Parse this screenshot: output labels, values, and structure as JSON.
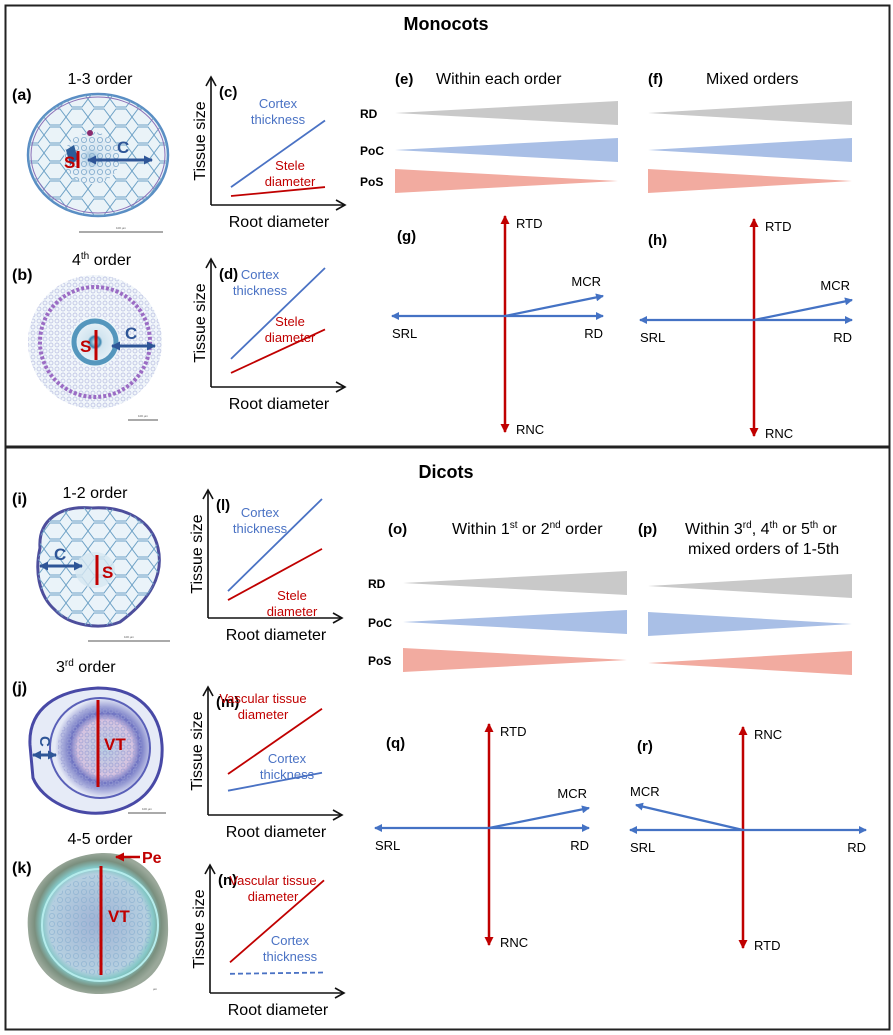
{
  "sections": [
    {
      "title": "Monocots",
      "micrographs": [
        {
          "panel": "(a)",
          "order_label": "1-3 order",
          "order_sup": "",
          "markers": [
            "S",
            "C"
          ],
          "scale_bar": "100 µm"
        },
        {
          "panel": "(b)",
          "order_label": "4",
          "order_sup": "th",
          "order_suffix": " order",
          "markers": [
            "S",
            "C"
          ],
          "scale_bar": "100 µm"
        }
      ],
      "plots": [
        {
          "panel": "(c)",
          "ylabel": "Tissue size",
          "xlabel": "Root diameter",
          "lines": [
            {
              "name": "Cortex thickness",
              "line1": "Cortex",
              "line2": "thickness",
              "color": "#4a72c4",
              "style": "solid",
              "y_start": 0.14,
              "y_end": 0.66
            },
            {
              "name": "Stele diameter",
              "line1": "Stele",
              "line2": "diameter",
              "color": "#c00000",
              "style": "solid",
              "y_start": 0.07,
              "y_end": 0.14
            }
          ]
        },
        {
          "panel": "(d)",
          "ylabel": "Tissue size",
          "xlabel": "Root diameter",
          "lines": [
            {
              "name": "Cortex thickness",
              "line1": "Cortex",
              "line2": "thickness",
              "color": "#4a72c4",
              "style": "solid",
              "y_start": 0.22,
              "y_end": 0.93
            },
            {
              "name": "Stele diameter",
              "line1": "Stele",
              "line2": "diameter",
              "color": "#c00000",
              "style": "solid",
              "y_start": 0.11,
              "y_end": 0.45
            }
          ]
        }
      ],
      "wedge_panels": [
        {
          "panel": "(e)",
          "title": "Within each order",
          "rows": [
            {
              "label": "RD",
              "direction": "increasing",
              "color": "#c9c9c9"
            },
            {
              "label": "PoC",
              "direction": "increasing",
              "color": "#a9bfe6"
            },
            {
              "label": "PoS",
              "direction": "decreasing",
              "color": "#f2aba0"
            }
          ]
        },
        {
          "panel": "(f)",
          "title": "Mixed orders",
          "rows": [
            {
              "label": "RD",
              "direction": "increasing",
              "color": "#c9c9c9"
            },
            {
              "label": "PoC",
              "direction": "increasing",
              "color": "#a9bfe6"
            },
            {
              "label": "PoS",
              "direction": "decreasing",
              "color": "#f2aba0"
            }
          ]
        }
      ],
      "axis_panels": [
        {
          "panel": "(g)",
          "up": "RTD",
          "down": "RNC",
          "left": "SRL",
          "right": "RD",
          "diag": "MCR",
          "diag_direction": "right"
        },
        {
          "panel": "(h)",
          "up": "RTD",
          "down": "RNC",
          "left": "SRL",
          "right": "RD",
          "diag": "MCR",
          "diag_direction": "right"
        }
      ]
    },
    {
      "title": "Dicots",
      "micrographs": [
        {
          "panel": "(i)",
          "order_label": "1-2 order",
          "markers": [
            "S",
            "C"
          ],
          "scale_bar": "100 µm"
        },
        {
          "panel": "(j)",
          "order_label": "3",
          "order_sup": "rd",
          "order_suffix": " order",
          "markers": [
            "VT",
            "C"
          ],
          "scale_bar": "100 µm"
        },
        {
          "panel": "(k)",
          "order_label": "4-5 order",
          "markers": [
            "VT",
            "Pe"
          ],
          "scale_bar": "µm"
        }
      ],
      "plots": [
        {
          "panel": "(l)",
          "ylabel": "Tissue size",
          "xlabel": "Root diameter",
          "lines": [
            {
              "name": "Cortex thickness",
              "line1": "Cortex",
              "line2": "thickness",
              "color": "#4a72c4",
              "style": "solid",
              "y_start": 0.21,
              "y_end": 0.93
            },
            {
              "name": "Stele diameter",
              "line1": "Stele",
              "line2": "diameter",
              "color": "#c00000",
              "style": "solid",
              "y_start": 0.14,
              "y_end": 0.54
            }
          ]
        },
        {
          "panel": "(m)",
          "ylabel": "Tissue size",
          "xlabel": "Root diameter",
          "lines": [
            {
              "name": "Vascular tissue diameter",
              "line1": "Vascular tissue",
              "line2": "diameter",
              "color": "#c00000",
              "style": "solid",
              "y_start": 0.32,
              "y_end": 0.83
            },
            {
              "name": "Cortex thickness",
              "line1": "Cortex",
              "line2": "thickness",
              "color": "#4a72c4",
              "style": "solid",
              "y_start": 0.19,
              "y_end": 0.33
            }
          ]
        },
        {
          "panel": "(n)",
          "ylabel": "Tissue size",
          "xlabel": "Root diameter",
          "lines": [
            {
              "name": "Vascular tissue diameter",
              "line1": "Vascular tissue",
              "line2": "diameter",
              "color": "#c00000",
              "style": "solid",
              "y_start": 0.24,
              "y_end": 0.88
            },
            {
              "name": "Cortex thickness",
              "line1": "Cortex",
              "line2": "thickness",
              "color": "#4a72c4",
              "style": "dashed",
              "y_start": 0.15,
              "y_end": 0.16
            }
          ]
        }
      ],
      "wedge_panels": [
        {
          "panel": "(o)",
          "title_parts": [
            "Within 1",
            "st",
            " or 2",
            "nd",
            " order"
          ],
          "rows": [
            {
              "label": "RD",
              "direction": "increasing",
              "color": "#c9c9c9"
            },
            {
              "label": "PoC",
              "direction": "increasing",
              "color": "#a9bfe6"
            },
            {
              "label": "PoS",
              "direction": "decreasing",
              "color": "#f2aba0"
            }
          ]
        },
        {
          "panel": "(p)",
          "title_parts": [
            "Within 3",
            "rd",
            ", 4",
            "th",
            "  or 5",
            "th",
            " or"
          ],
          "title_line2": "mixed orders of 1-5th",
          "rows": [
            {
              "label": "RD",
              "direction": "increasing",
              "color": "#c9c9c9"
            },
            {
              "label": "PoC",
              "direction": "decreasing",
              "color": "#a9bfe6"
            },
            {
              "label": "PoS",
              "direction": "increasing",
              "color": "#f2aba0"
            }
          ]
        }
      ],
      "axis_panels": [
        {
          "panel": "(q)",
          "up": "RTD",
          "down": "RNC",
          "left": "SRL",
          "right": "RD",
          "diag": "MCR",
          "diag_direction": "right"
        },
        {
          "panel": "(r)",
          "up": "RNC",
          "down": "RTD",
          "left": "SRL",
          "right": "RD",
          "diag": "MCR",
          "diag_direction": "left"
        }
      ]
    }
  ],
  "colors": {
    "blue_arrow": "#4472c4",
    "red_arrow": "#c00000",
    "marker_red": "#c00000",
    "marker_blue": "#2e5597"
  }
}
